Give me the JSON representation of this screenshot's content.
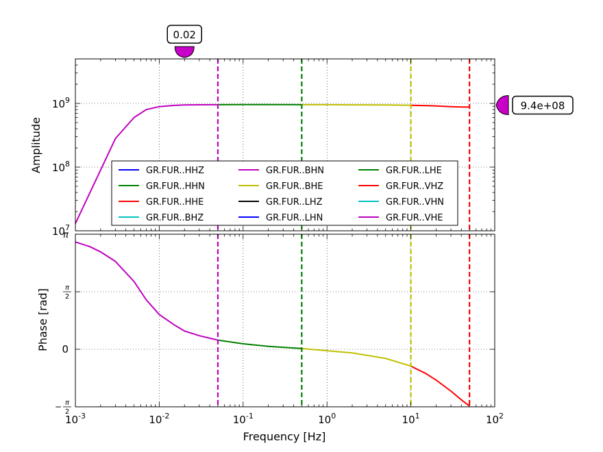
{
  "chart_data": [
    {
      "type": "line",
      "panel": "amplitude",
      "ylabel": "Amplitude",
      "xscale": "log",
      "yscale": "log",
      "xlim": [
        0.001,
        100
      ],
      "ylim": [
        10000000,
        5000000000
      ],
      "xticks": [
        0.001,
        0.01,
        0.1,
        1,
        10,
        100
      ],
      "xtick_labels": [
        {
          "base": "10",
          "exp": "-3"
        },
        {
          "base": "10",
          "exp": "-2"
        },
        {
          "base": "10",
          "exp": "-1"
        },
        {
          "base": "10",
          "exp": "0"
        },
        {
          "base": "10",
          "exp": "1"
        },
        {
          "base": "10",
          "exp": "2"
        }
      ],
      "yticks": [
        10000000,
        100000000,
        1000000000
      ],
      "ytick_labels": [
        {
          "base": "10",
          "exp": "7"
        },
        {
          "base": "10",
          "exp": "8"
        },
        {
          "base": "10",
          "exp": "9"
        }
      ],
      "grid": true,
      "legend_position": "lower-center",
      "series": [
        {
          "name": "GR.FUR..HHZ",
          "color": "#0000ff"
        },
        {
          "name": "GR.FUR..HHN",
          "color": "#008000"
        },
        {
          "name": "GR.FUR..HHE",
          "color": "#ff0000"
        },
        {
          "name": "GR.FUR..BHZ",
          "color": "#00bfbf"
        },
        {
          "name": "GR.FUR..BHN",
          "color": "#bf00bf"
        },
        {
          "name": "GR.FUR..BHE",
          "color": "#bfbf00"
        },
        {
          "name": "GR.FUR..LHZ",
          "color": "#000000"
        },
        {
          "name": "GR.FUR..LHN",
          "color": "#0000ff"
        },
        {
          "name": "GR.FUR..LHE",
          "color": "#008000"
        },
        {
          "name": "GR.FUR..VHZ",
          "color": "#ff0000"
        },
        {
          "name": "GR.FUR..VHN",
          "color": "#00bfbf"
        },
        {
          "name": "GR.FUR..VHE",
          "color": "#bf00bf"
        }
      ],
      "curve_segments": [
        {
          "color": "#bf00bf",
          "points": [
            [
              0.001,
              13000000
            ],
            [
              0.002,
              90000000
            ],
            [
              0.003,
              280000000
            ],
            [
              0.005,
              600000000
            ],
            [
              0.007,
              800000000
            ],
            [
              0.01,
              890000000
            ],
            [
              0.015,
              930000000
            ],
            [
              0.02,
              945000000
            ],
            [
              0.03,
              952000000
            ],
            [
              0.05,
              955000000
            ]
          ]
        },
        {
          "color": "#008000",
          "points": [
            [
              0.05,
              955000000
            ],
            [
              0.1,
              956000000
            ],
            [
              0.2,
              956000000
            ],
            [
              0.5,
              955000000
            ]
          ]
        },
        {
          "color": "#bfbf00",
          "points": [
            [
              0.5,
              955000000
            ],
            [
              1,
              953000000
            ],
            [
              2,
              950000000
            ],
            [
              5,
              945000000
            ],
            [
              10,
              935000000
            ]
          ]
        },
        {
          "color": "#ff0000",
          "points": [
            [
              10,
              935000000
            ],
            [
              15,
              925000000
            ],
            [
              20,
              912000000
            ],
            [
              30,
              890000000
            ],
            [
              40,
              880000000
            ],
            [
              50,
              880000000
            ]
          ]
        }
      ],
      "vlines": [
        {
          "x": 0.05,
          "color": "#bf00bf"
        },
        {
          "x": 0.5,
          "color": "#008000"
        },
        {
          "x": 10,
          "color": "#bfbf00"
        },
        {
          "x": 50,
          "color": "#ff0000"
        }
      ],
      "markers": [
        {
          "label": "0.02",
          "x": 0.02,
          "color": "#c800c8",
          "position": "top"
        },
        {
          "label": "9.4e+08",
          "y": 940000000,
          "color": "#c800c8",
          "position": "right"
        }
      ]
    },
    {
      "type": "line",
      "panel": "phase",
      "xlabel": "Frequency [Hz]",
      "ylabel": "Phase [rad]",
      "xscale": "log",
      "xlim": [
        0.001,
        100
      ],
      "ylim": [
        -1.5708,
        3.1416
      ],
      "yticks": [
        -1.5708,
        0,
        1.5708,
        3.1416
      ],
      "ytick_labels": [
        {
          "sign": "−",
          "num": "π",
          "den": "2"
        },
        {
          "text": "0"
        },
        {
          "sign": "",
          "num": "π",
          "den": "2"
        },
        {
          "text": "π"
        }
      ],
      "grid": true,
      "curve_segments": [
        {
          "color": "#bf00bf",
          "points": [
            [
              0.001,
              2.93
            ],
            [
              0.0015,
              2.8
            ],
            [
              0.002,
              2.66
            ],
            [
              0.003,
              2.4
            ],
            [
              0.005,
              1.85
            ],
            [
              0.007,
              1.35
            ],
            [
              0.01,
              0.95
            ],
            [
              0.015,
              0.67
            ],
            [
              0.02,
              0.5
            ],
            [
              0.03,
              0.37
            ],
            [
              0.05,
              0.25
            ]
          ]
        },
        {
          "color": "#008000",
          "points": [
            [
              0.05,
              0.25
            ],
            [
              0.1,
              0.15
            ],
            [
              0.2,
              0.08
            ],
            [
              0.5,
              0.02
            ]
          ]
        },
        {
          "color": "#bfbf00",
          "points": [
            [
              0.5,
              0.02
            ],
            [
              1,
              -0.04
            ],
            [
              2,
              -0.1
            ],
            [
              5,
              -0.25
            ],
            [
              10,
              -0.46
            ]
          ]
        },
        {
          "color": "#ff0000",
          "points": [
            [
              10,
              -0.46
            ],
            [
              15,
              -0.66
            ],
            [
              20,
              -0.84
            ],
            [
              30,
              -1.14
            ],
            [
              40,
              -1.38
            ],
            [
              50,
              -1.55
            ]
          ]
        }
      ],
      "vlines": [
        {
          "x": 0.05,
          "color": "#bf00bf"
        },
        {
          "x": 0.5,
          "color": "#008000"
        },
        {
          "x": 10,
          "color": "#bfbf00"
        },
        {
          "x": 50,
          "color": "#ff0000"
        }
      ]
    }
  ]
}
